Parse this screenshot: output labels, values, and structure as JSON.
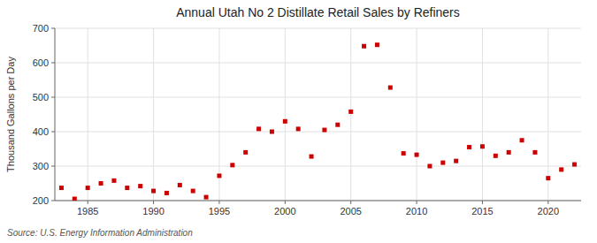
{
  "chart_data": {
    "type": "scatter",
    "title": "Annual Utah No 2 Distillate Retail Sales by Refiners",
    "ylabel": "Thousand Gallons per Day",
    "source": "Source: U.S. Energy Information Administration",
    "color": "#cc0000",
    "marker": "square",
    "grid": true,
    "x": [
      1983,
      1984,
      1985,
      1986,
      1987,
      1988,
      1989,
      1990,
      1991,
      1992,
      1993,
      1994,
      1995,
      1996,
      1997,
      1998,
      1999,
      2000,
      2001,
      2002,
      2003,
      2004,
      2005,
      2006,
      2007,
      2008,
      2009,
      2010,
      2011,
      2012,
      2013,
      2014,
      2015,
      2016,
      2017,
      2018,
      2019,
      2020,
      2021,
      2022
    ],
    "values": [
      237,
      205,
      237,
      250,
      258,
      237,
      242,
      228,
      222,
      245,
      228,
      210,
      272,
      303,
      340,
      408,
      400,
      430,
      408,
      328,
      405,
      420,
      458,
      648,
      652,
      528,
      337,
      333,
      300,
      310,
      315,
      355,
      357,
      330,
      340,
      375,
      340,
      265,
      290,
      305
    ],
    "xlim": [
      1982.5,
      2022.5
    ],
    "xticks": [
      1985,
      1990,
      1995,
      2000,
      2005,
      2010,
      2015,
      2020
    ],
    "ylim": [
      200,
      700
    ],
    "yticks": [
      200,
      300,
      400,
      500,
      600,
      700
    ]
  }
}
